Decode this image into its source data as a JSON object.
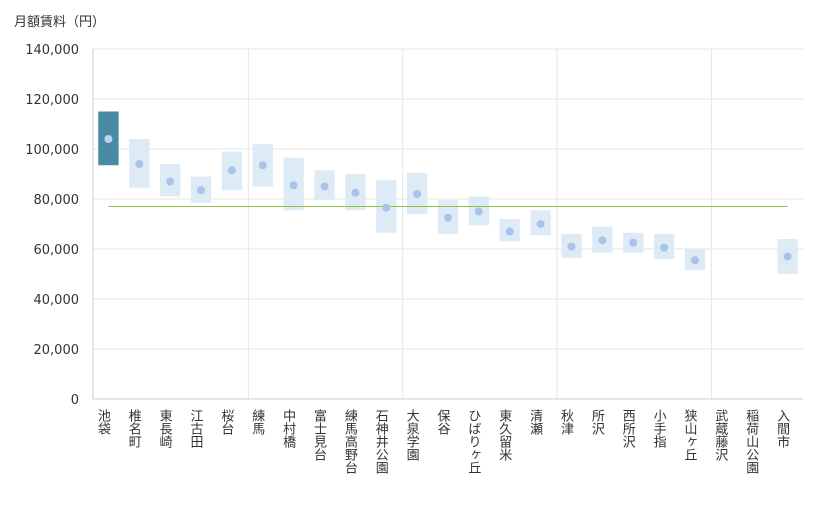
{
  "chart_data": {
    "type": "range-bar",
    "ylabel": "月額賃料（円）",
    "ylim": [
      0,
      140000
    ],
    "yticks": [
      "0",
      "20,000",
      "40,000",
      "60,000",
      "80,000",
      "100,000",
      "120,000",
      "140,000"
    ],
    "ytick_values": [
      0,
      20000,
      40000,
      60000,
      80000,
      100000,
      120000,
      140000
    ],
    "categories": [
      "池袋",
      "椎名町",
      "東長崎",
      "江古田",
      "桜台",
      "練馬",
      "中村橋",
      "富士見台",
      "練馬高野台",
      "石神井公園",
      "大泉学園",
      "保谷",
      "ひばりヶ丘",
      "東久留米",
      "清瀬",
      "秋津",
      "所沢",
      "西所沢",
      "小手指",
      "狭山ヶ丘",
      "武蔵藤沢",
      "稲荷山公園",
      "入間市"
    ],
    "series": [
      {
        "name": "min",
        "values": [
          93500,
          84500,
          81000,
          78500,
          83500,
          85000,
          75500,
          79500,
          75500,
          66500,
          74000,
          66000,
          69500,
          63000,
          65500,
          56500,
          58500,
          58500,
          56000,
          51500,
          null,
          null,
          50000
        ]
      },
      {
        "name": "max",
        "values": [
          115000,
          104000,
          94000,
          89000,
          99000,
          102000,
          96500,
          91500,
          90000,
          87500,
          90500,
          79500,
          81000,
          72000,
          75500,
          66000,
          69000,
          66500,
          66000,
          60000,
          null,
          null,
          64000
        ]
      },
      {
        "name": "average",
        "values": [
          104000,
          94000,
          87000,
          83500,
          91500,
          93500,
          85500,
          85000,
          82500,
          76500,
          82000,
          72500,
          75000,
          67000,
          70000,
          61000,
          63500,
          62500,
          60500,
          55500,
          null,
          null,
          57000
        ]
      }
    ],
    "reference_line": 77000,
    "highlight_index": 0,
    "vertical_separators_after_index": [
      4,
      9,
      14,
      19
    ],
    "colors": {
      "range": "#deebf7",
      "range_highlight": "#4a8aa5",
      "dot": "#a9c4ea",
      "dot_highlight": "#b9d2f2",
      "reference": "#8cc63f",
      "grid": "#e5e5e5",
      "axis": "#cccccc"
    }
  }
}
